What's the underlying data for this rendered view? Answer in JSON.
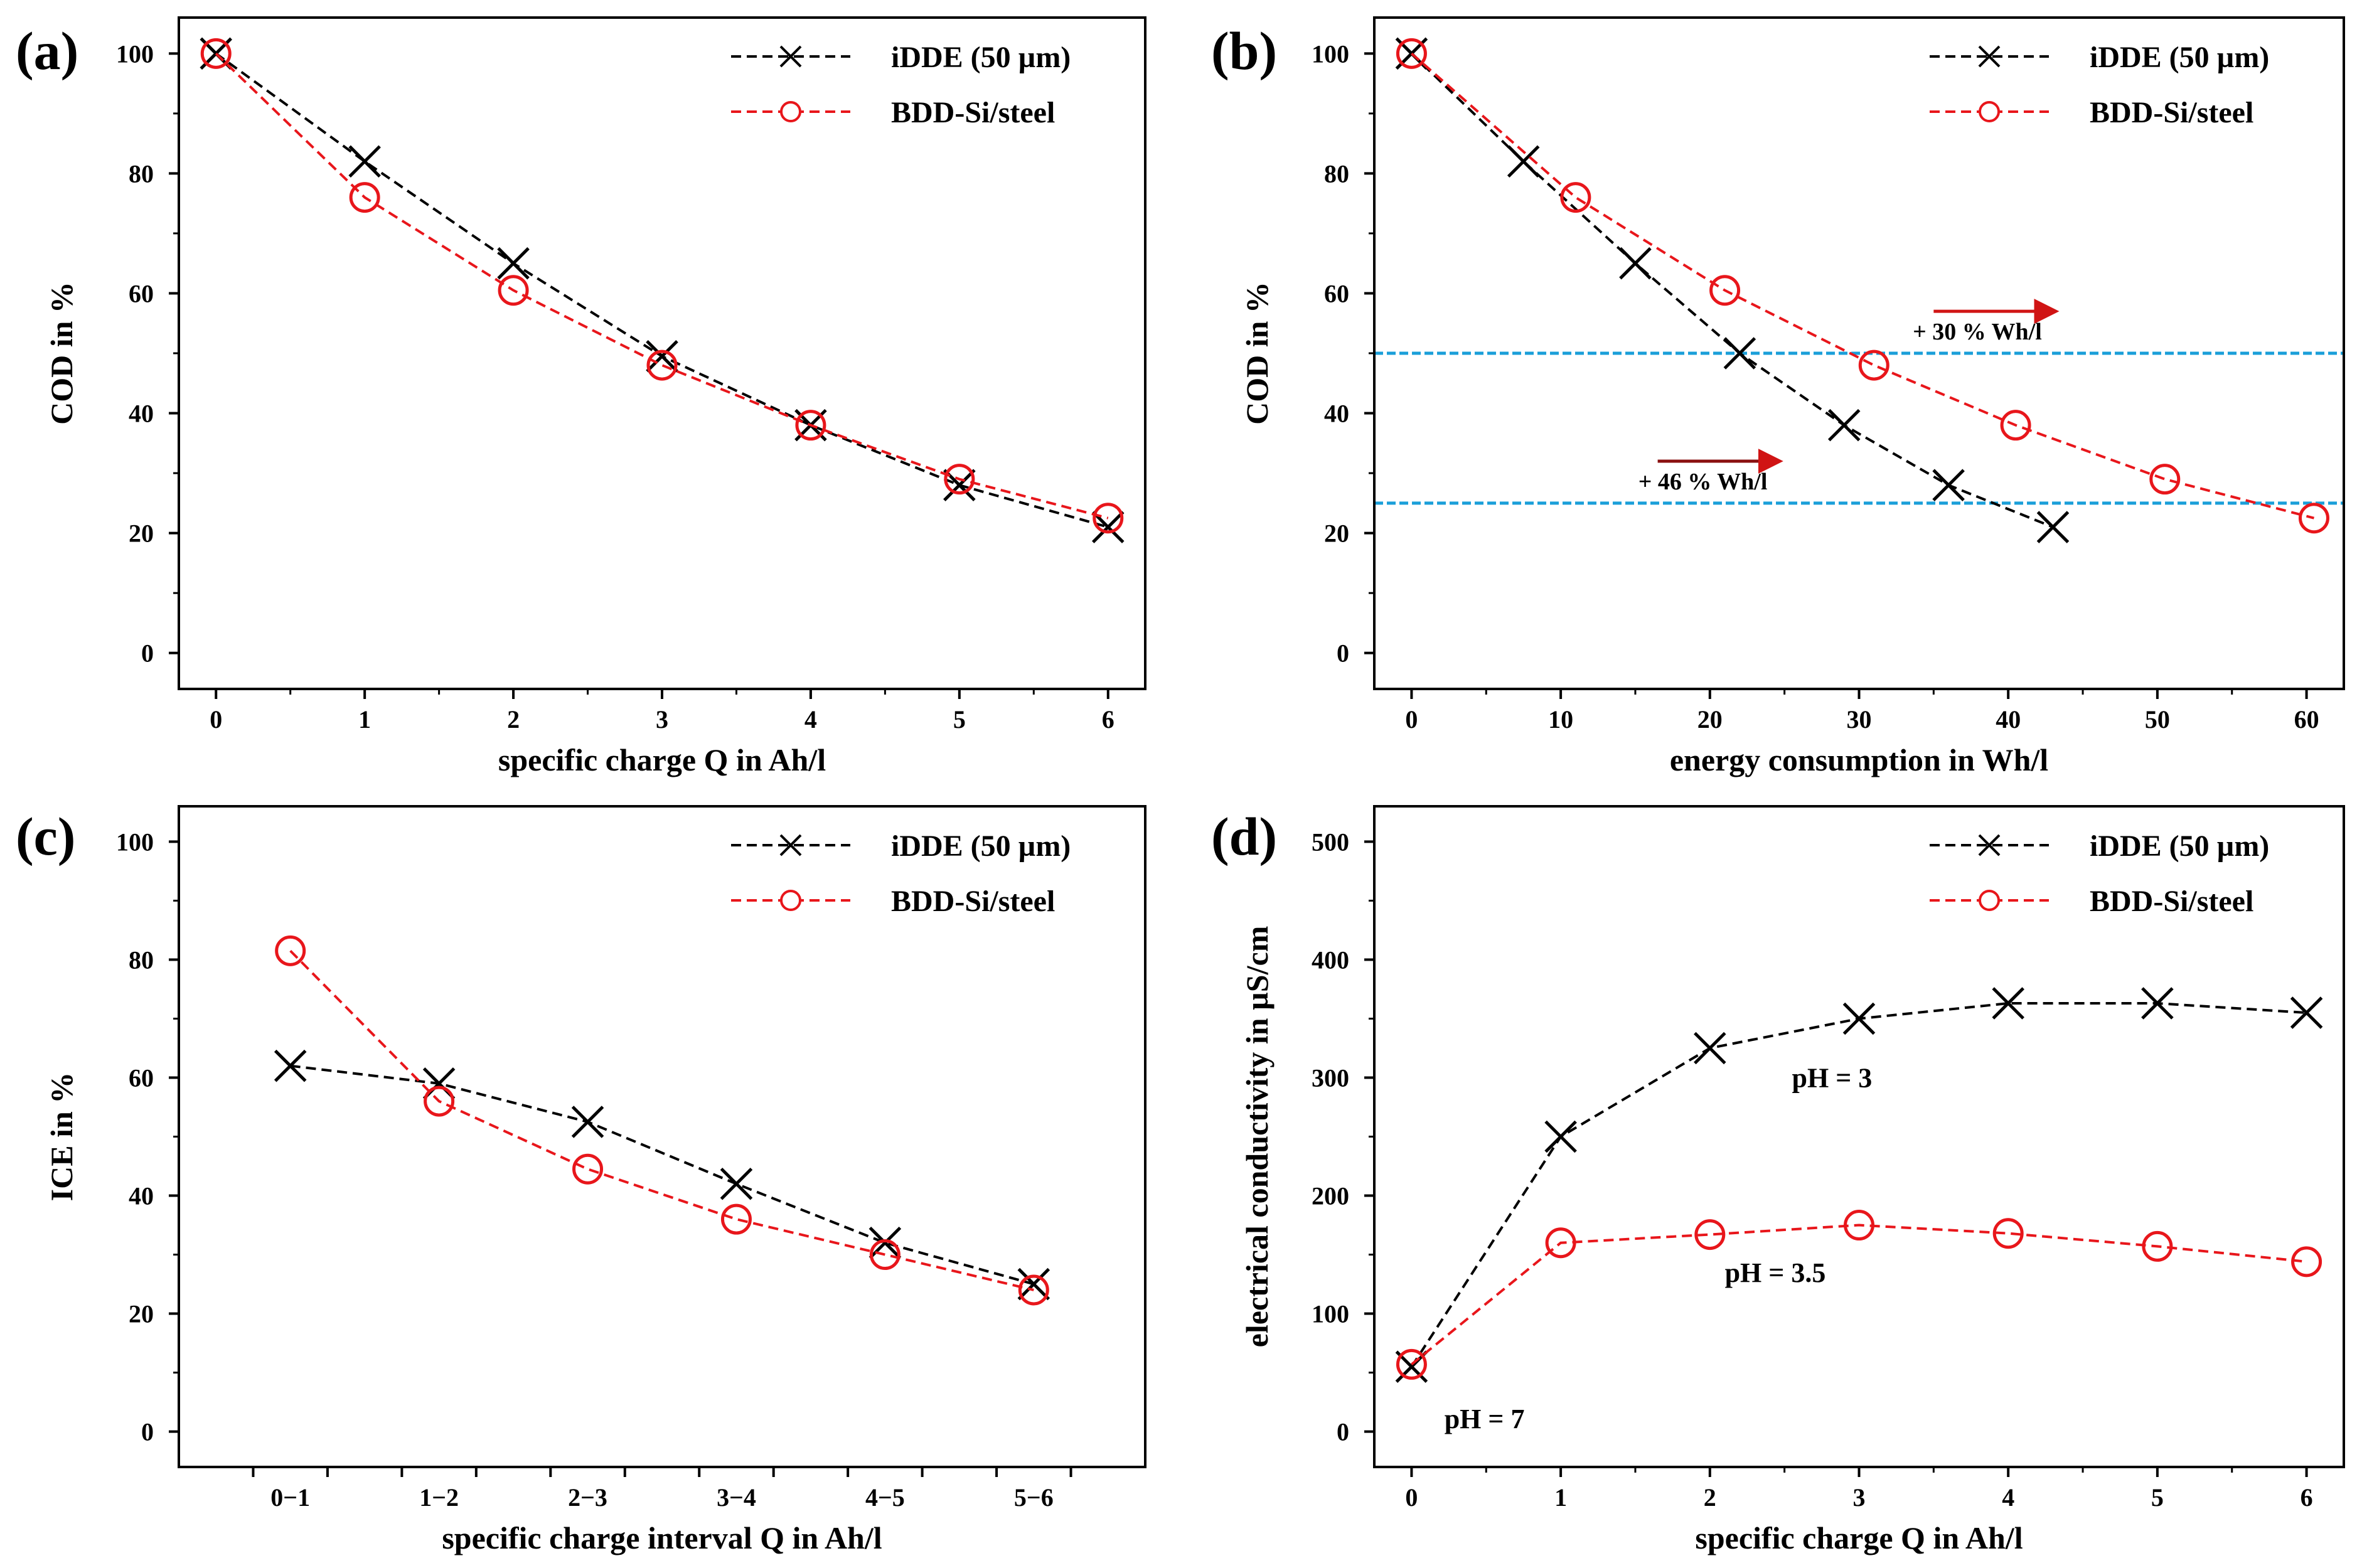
{
  "figure": {
    "panels": [
      "a",
      "b",
      "c",
      "d"
    ]
  },
  "chart_data": [
    {
      "id": "a",
      "panel_label": "(a)",
      "type": "line",
      "xlabel": "specific charge Q in Ah/l",
      "ylabel": "COD  in %",
      "xlim": [
        -0.25,
        6.25
      ],
      "ylim": [
        -6,
        106
      ],
      "xticks": [
        0,
        1,
        2,
        3,
        4,
        5,
        6
      ],
      "xtick_labels": [
        "0",
        "1",
        "2",
        "3",
        "4",
        "5",
        "6"
      ],
      "yticks": [
        0,
        20,
        40,
        60,
        80,
        100
      ],
      "ytick_labels": [
        "0",
        "20",
        "40",
        "60",
        "80",
        "100"
      ],
      "legend_position": "top-right",
      "series": [
        {
          "name": "iDDE (50 µm)",
          "color": "#000000",
          "marker": "x",
          "x": [
            0,
            1,
            2,
            3,
            4,
            5,
            6
          ],
          "y": [
            100,
            82,
            65,
            49.5,
            38,
            28,
            21
          ]
        },
        {
          "name": "BDD-Si/steel",
          "color": "#e8161b",
          "marker": "o",
          "x": [
            0,
            1,
            2,
            3,
            4,
            5,
            6
          ],
          "y": [
            100,
            76,
            60.5,
            48,
            38,
            29,
            22.5
          ]
        }
      ],
      "annotations": []
    },
    {
      "id": "b",
      "panel_label": "(b)",
      "type": "line",
      "xlabel": "energy consumption in Wh/l",
      "ylabel": "COD  in %",
      "xlim": [
        -2.5,
        62.5
      ],
      "ylim": [
        -6,
        106
      ],
      "xticks": [
        0,
        10,
        20,
        30,
        40,
        50,
        60
      ],
      "xtick_labels": [
        "0",
        "10",
        "20",
        "30",
        "40",
        "50",
        "60"
      ],
      "yticks": [
        0,
        20,
        40,
        60,
        80,
        100
      ],
      "ytick_labels": [
        "0",
        "20",
        "40",
        "60",
        "80",
        "100"
      ],
      "legend_position": "top-right",
      "series": [
        {
          "name": "iDDE (50 µm)",
          "color": "#000000",
          "marker": "x",
          "x": [
            0,
            7.5,
            15,
            22,
            29,
            36,
            43
          ],
          "y": [
            100,
            82,
            65,
            50,
            38,
            28,
            21
          ]
        },
        {
          "name": "BDD-Si/steel",
          "color": "#e8161b",
          "marker": "o",
          "x": [
            0,
            11,
            21,
            31,
            40.5,
            50.5,
            60.5
          ],
          "y": [
            100,
            76,
            60.5,
            48,
            38,
            29,
            22.5
          ]
        }
      ],
      "hlines": [
        {
          "y": 50,
          "color": "#1a9fd9"
        },
        {
          "y": 25,
          "color": "#1a9fd9"
        }
      ],
      "arrows": [
        {
          "x1": 35,
          "x2": 43,
          "y": 57,
          "color": "#d01414"
        },
        {
          "x1": 16.5,
          "x2": 24.5,
          "y": 32,
          "color": "#8a1010"
        }
      ],
      "annotations": [
        {
          "text": "+ 30 % Wh/l",
          "x": 33.6,
          "y": 52.3,
          "size": "small"
        },
        {
          "text": "+ 46 % Wh/l",
          "x": 15.2,
          "y": 27.3,
          "size": "small"
        }
      ]
    },
    {
      "id": "c",
      "panel_label": "(c)",
      "type": "line",
      "xlabel": "specific charge interval Q in Ah/l",
      "ylabel": "ICE in %",
      "xlim": [
        0,
        13
      ],
      "ylim": [
        -6,
        106
      ],
      "xticks": [
        1,
        2,
        3,
        4,
        5,
        6,
        7,
        8,
        9,
        10,
        11,
        12
      ],
      "xtick_labels": [
        "",
        "",
        "",
        "",
        "",
        "",
        "",
        "",
        "",
        "",
        "",
        ""
      ],
      "category_x": [
        1.5,
        3.5,
        5.5,
        7.5,
        9.5,
        11.5
      ],
      "categories": [
        "0−1",
        "1−2",
        "2−3",
        "3−4",
        "4−5",
        "5−6"
      ],
      "yticks": [
        0,
        20,
        40,
        60,
        80,
        100
      ],
      "ytick_labels": [
        "0",
        "20",
        "40",
        "60",
        "80",
        "100"
      ],
      "legend_position": "top-right",
      "series": [
        {
          "name": "iDDE (50 µm)",
          "color": "#000000",
          "marker": "x",
          "x": [
            1.5,
            3.5,
            5.5,
            7.5,
            9.5,
            11.5
          ],
          "y": [
            62,
            59,
            52.5,
            42,
            32,
            25
          ]
        },
        {
          "name": "BDD-Si/steel",
          "color": "#e8161b",
          "marker": "o",
          "x": [
            1.5,
            3.5,
            5.5,
            7.5,
            9.5,
            11.5
          ],
          "y": [
            81.5,
            56,
            44.5,
            36,
            30,
            24
          ]
        }
      ],
      "annotations": []
    },
    {
      "id": "d",
      "panel_label": "(d)",
      "type": "line",
      "xlabel": "specific charge Q in Ah/l",
      "ylabel": "electrical conductivity  in µS/cm",
      "xlim": [
        -0.25,
        6.25
      ],
      "ylim": [
        -30,
        530
      ],
      "xticks": [
        0,
        1,
        2,
        3,
        4,
        5,
        6
      ],
      "xtick_labels": [
        "0",
        "1",
        "2",
        "3",
        "4",
        "5",
        "6"
      ],
      "yticks": [
        0,
        100,
        200,
        300,
        400,
        500
      ],
      "ytick_labels": [
        "0",
        "100",
        "200",
        "300",
        "400",
        "500"
      ],
      "legend_position": "top-right",
      "series": [
        {
          "name": "iDDE (50 µm)",
          "color": "#000000",
          "marker": "x",
          "x": [
            0,
            1,
            2,
            3,
            4,
            5,
            6
          ],
          "y": [
            55,
            250,
            325,
            350,
            363,
            363,
            355
          ]
        },
        {
          "name": "BDD-Si/steel",
          "color": "#e8161b",
          "marker": "o",
          "x": [
            0,
            1,
            2,
            3,
            4,
            5,
            6
          ],
          "y": [
            57,
            160,
            167,
            175,
            168,
            157,
            144
          ]
        }
      ],
      "annotations": [
        {
          "text": "pH = 3",
          "x": 2.55,
          "y": 292,
          "size": "normal"
        },
        {
          "text": "pH = 3.5",
          "x": 2.1,
          "y": 127,
          "size": "normal"
        },
        {
          "text": "pH = 7",
          "x": 0.22,
          "y": 3,
          "size": "normal"
        }
      ]
    }
  ]
}
